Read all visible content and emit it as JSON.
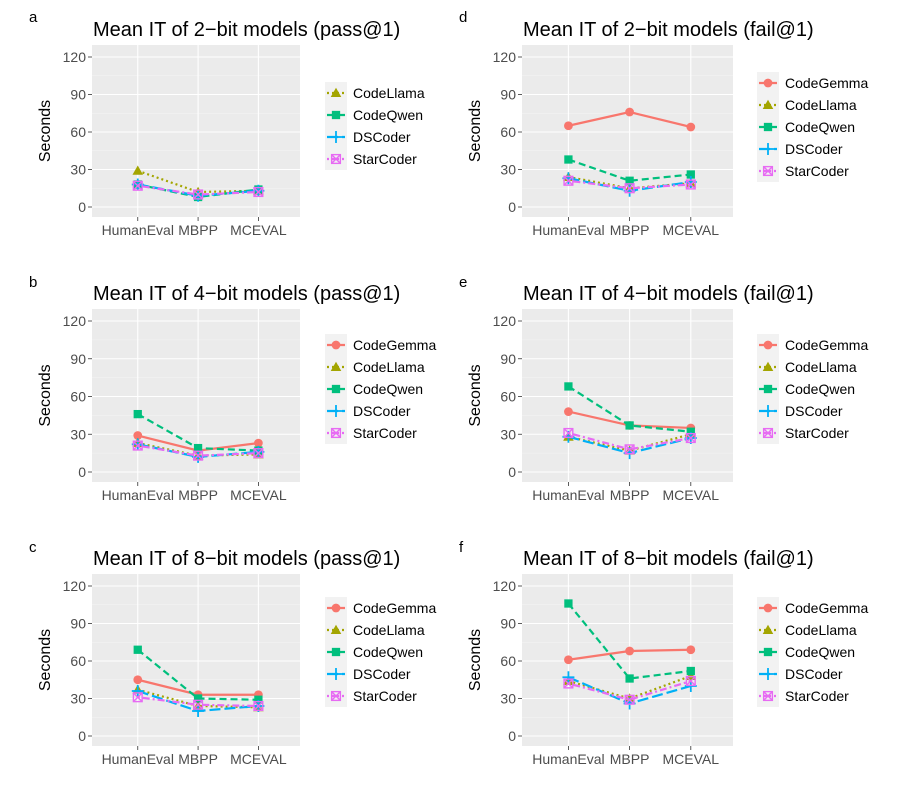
{
  "x_categories": [
    "HumanEval",
    "MBPP",
    "MCEVAL"
  ],
  "y_axis_label": "Seconds",
  "y_ticks": [
    "0",
    "30",
    "60",
    "90",
    "120"
  ],
  "series_styles": {
    "CodeGemma": {
      "color": "#F8766D",
      "shape": "circle",
      "dash": "solid"
    },
    "CodeLlama": {
      "color": "#A3A500",
      "shape": "triangle",
      "dash": "dotted"
    },
    "CodeQwen": {
      "color": "#00BF7D",
      "shape": "square",
      "dash": "dashed"
    },
    "DSCoder": {
      "color": "#00B0F6",
      "shape": "plus",
      "dash": "longdash"
    },
    "StarCoder": {
      "color": "#E76BF3",
      "shape": "boxx",
      "dash": "dotdash"
    }
  },
  "chart_data": [
    {
      "id": "a",
      "panel_label": "a",
      "type": "line",
      "title": "Mean IT of 2−bit models (pass@1)",
      "xlabel": "",
      "ylabel": "Seconds",
      "ylim": [
        0,
        120
      ],
      "categories": [
        "HumanEval",
        "MBPP",
        "MCEVAL"
      ],
      "legend": [
        "CodeLlama",
        "CodeQwen",
        "DSCoder",
        "StarCoder"
      ],
      "series": [
        {
          "name": "CodeLlama",
          "values": [
            29,
            12,
            13
          ]
        },
        {
          "name": "CodeQwen",
          "values": [
            18,
            8,
            14
          ]
        },
        {
          "name": "DSCoder",
          "values": [
            18,
            9,
            13
          ]
        },
        {
          "name": "StarCoder",
          "values": [
            17,
            10,
            12
          ]
        }
      ]
    },
    {
      "id": "b",
      "panel_label": "b",
      "type": "line",
      "title": "Mean IT of 4−bit models (pass@1)",
      "xlabel": "",
      "ylabel": "Seconds",
      "ylim": [
        0,
        120
      ],
      "categories": [
        "HumanEval",
        "MBPP",
        "MCEVAL"
      ],
      "legend": [
        "CodeGemma",
        "CodeLlama",
        "CodeQwen",
        "DSCoder",
        "StarCoder"
      ],
      "series": [
        {
          "name": "CodeGemma",
          "values": [
            29,
            17,
            23
          ]
        },
        {
          "name": "CodeLlama",
          "values": [
            23,
            13,
            14
          ]
        },
        {
          "name": "CodeQwen",
          "values": [
            46,
            19,
            17
          ]
        },
        {
          "name": "DSCoder",
          "values": [
            22,
            12,
            16
          ]
        },
        {
          "name": "StarCoder",
          "values": [
            21,
            13,
            15
          ]
        }
      ]
    },
    {
      "id": "c",
      "panel_label": "c",
      "type": "line",
      "title": "Mean IT of 8−bit models (pass@1)",
      "xlabel": "",
      "ylabel": "Seconds",
      "ylim": [
        0,
        120
      ],
      "categories": [
        "HumanEval",
        "MBPP",
        "MCEVAL"
      ],
      "legend": [
        "CodeGemma",
        "CodeLlama",
        "CodeQwen",
        "DSCoder",
        "StarCoder"
      ],
      "series": [
        {
          "name": "CodeGemma",
          "values": [
            45,
            33,
            33
          ]
        },
        {
          "name": "CodeLlama",
          "values": [
            37,
            24,
            23
          ]
        },
        {
          "name": "CodeQwen",
          "values": [
            69,
            30,
            29
          ]
        },
        {
          "name": "DSCoder",
          "values": [
            36,
            20,
            24
          ]
        },
        {
          "name": "StarCoder",
          "values": [
            31,
            25,
            24
          ]
        }
      ]
    },
    {
      "id": "d",
      "panel_label": "d",
      "type": "line",
      "title": "Mean IT of 2−bit models (fail@1)",
      "xlabel": "",
      "ylabel": "Seconds",
      "ylim": [
        0,
        120
      ],
      "categories": [
        "HumanEval",
        "MBPP",
        "MCEVAL"
      ],
      "legend": [
        "CodeGemma",
        "CodeLlama",
        "CodeQwen",
        "DSCoder",
        "StarCoder"
      ],
      "series": [
        {
          "name": "CodeGemma",
          "values": [
            65,
            76,
            64
          ]
        },
        {
          "name": "CodeLlama",
          "values": [
            24,
            15,
            19
          ]
        },
        {
          "name": "CodeQwen",
          "values": [
            38,
            21,
            26
          ]
        },
        {
          "name": "DSCoder",
          "values": [
            23,
            13,
            20
          ]
        },
        {
          "name": "StarCoder",
          "values": [
            21,
            15,
            18
          ]
        }
      ]
    },
    {
      "id": "e",
      "panel_label": "e",
      "type": "line",
      "title": "Mean IT of 4−bit models (fail@1)",
      "xlabel": "",
      "ylabel": "Seconds",
      "ylim": [
        0,
        120
      ],
      "categories": [
        "HumanEval",
        "MBPP",
        "MCEVAL"
      ],
      "legend": [
        "CodeGemma",
        "CodeLlama",
        "CodeQwen",
        "DSCoder",
        "StarCoder"
      ],
      "series": [
        {
          "name": "CodeGemma",
          "values": [
            48,
            37,
            35
          ]
        },
        {
          "name": "CodeLlama",
          "values": [
            28,
            17,
            30
          ]
        },
        {
          "name": "CodeQwen",
          "values": [
            68,
            37,
            32
          ]
        },
        {
          "name": "DSCoder",
          "values": [
            28,
            15,
            27
          ]
        },
        {
          "name": "StarCoder",
          "values": [
            31,
            18,
            27
          ]
        }
      ]
    },
    {
      "id": "f",
      "panel_label": "f",
      "type": "line",
      "title": "Mean IT of 8−bit models (fail@1)",
      "xlabel": "",
      "ylabel": "Seconds",
      "ylim": [
        0,
        120
      ],
      "categories": [
        "HumanEval",
        "MBPP",
        "MCEVAL"
      ],
      "legend": [
        "CodeGemma",
        "CodeLlama",
        "CodeQwen",
        "DSCoder",
        "StarCoder"
      ],
      "series": [
        {
          "name": "CodeGemma",
          "values": [
            61,
            68,
            69
          ]
        },
        {
          "name": "CodeLlama",
          "values": [
            44,
            30,
            48
          ]
        },
        {
          "name": "CodeQwen",
          "values": [
            106,
            46,
            52
          ]
        },
        {
          "name": "DSCoder",
          "values": [
            47,
            26,
            40
          ]
        },
        {
          "name": "StarCoder",
          "values": [
            42,
            29,
            44
          ]
        }
      ]
    }
  ]
}
